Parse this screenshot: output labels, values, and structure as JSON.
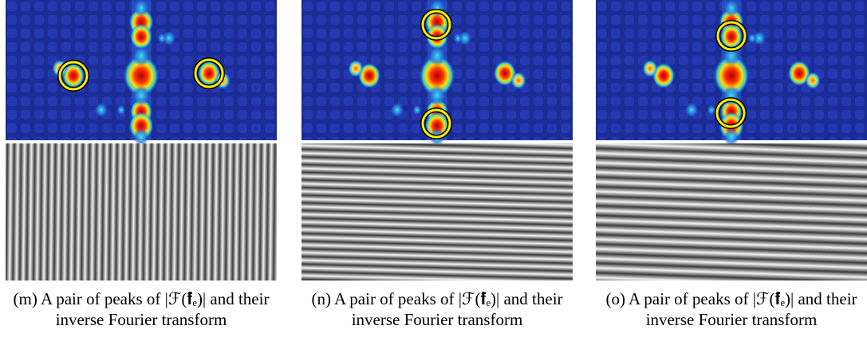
{
  "panels": [
    {
      "caption": "(m) A pair of peaks of |ℱ(𝐟̂ₑ)| and their inverse Fourier transform"
    },
    {
      "caption": "(n) A pair of peaks of |ℱ(𝐟̂ₑ)| and their inverse Fourier transform"
    },
    {
      "caption": "(o) A pair of peaks of |ℱ(𝐟̂ₑ)| and their inverse Fourier transform"
    }
  ]
}
